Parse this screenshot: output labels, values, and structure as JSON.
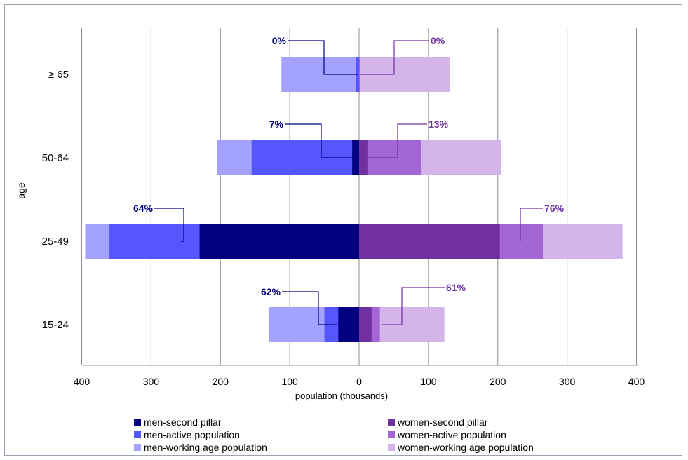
{
  "chart_data": {
    "type": "bar",
    "orientation": "horizontal",
    "layout": "population-pyramid",
    "categories": [
      "≥  65",
      "50-64",
      "25-49",
      "15-24"
    ],
    "xlabel": "population (thousands)",
    "ylabel": "age",
    "xlim": [
      -400,
      400
    ],
    "x_tick_values": [
      -400,
      -300,
      -200,
      -100,
      0,
      100,
      200,
      300,
      400
    ],
    "x_tick_labels": [
      "400",
      "300",
      "200",
      "100",
      "0",
      "100",
      "200",
      "300",
      "400"
    ],
    "grid": "vertical",
    "legend_position": "bottom",
    "series": [
      {
        "name": "men-second pillar",
        "side": "left",
        "color": "#000080",
        "values": [
          0,
          10,
          230,
          30
        ]
      },
      {
        "name": "men-active population",
        "side": "left",
        "color": "#5656ff",
        "values": [
          5,
          155,
          360,
          50
        ]
      },
      {
        "name": "men-working age population",
        "side": "left",
        "color": "#a3a3ff",
        "values": [
          112,
          205,
          395,
          130
        ]
      },
      {
        "name": "women-second pillar",
        "side": "right",
        "color": "#7030a0",
        "values": [
          0,
          13,
          203,
          18
        ]
      },
      {
        "name": "women-active population",
        "side": "right",
        "color": "#a466d4",
        "values": [
          2,
          90,
          265,
          30
        ]
      },
      {
        "name": "women-working age population",
        "side": "right",
        "color": "#d3b5e9",
        "values": [
          131,
          205,
          380,
          123
        ]
      }
    ],
    "annotations": {
      "men": [
        "0%",
        "7%",
        "64%",
        "62%"
      ],
      "women": [
        "0%",
        "13%",
        "76%",
        "61%"
      ],
      "men_color": "#000080",
      "women_color": "#7030a0"
    }
  },
  "legend": [
    {
      "label": "men-second pillar",
      "color": "#000080"
    },
    {
      "label": "women-second pillar",
      "color": "#7030a0"
    },
    {
      "label": "men-active population",
      "color": "#5656ff"
    },
    {
      "label": "women-active population",
      "color": "#a466d4"
    },
    {
      "label": "men-working age population",
      "color": "#a3a3ff"
    },
    {
      "label": "women-working age population",
      "color": "#d3b5e9"
    }
  ]
}
